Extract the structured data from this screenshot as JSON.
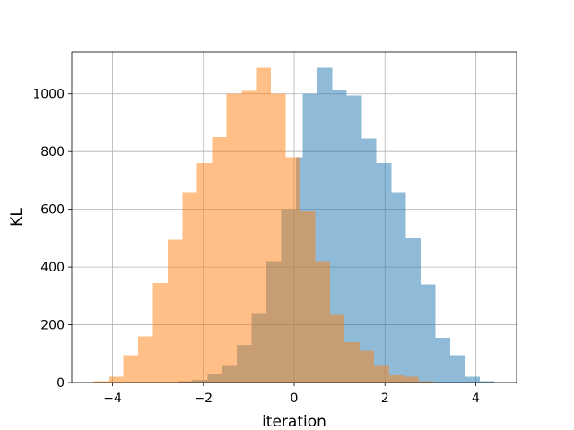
{
  "chart_data": {
    "type": "histogram",
    "xlabel": "iteration",
    "ylabel": "KL",
    "xlim": [
      -4.9,
      4.9
    ],
    "ylim": [
      0,
      1145
    ],
    "xticks": [
      -4,
      -2,
      0,
      2,
      4
    ],
    "xtick_labels": [
      "−4",
      "−2",
      "0",
      "2",
      "4"
    ],
    "yticks": [
      0,
      200,
      400,
      600,
      800,
      1000
    ],
    "ytick_labels": [
      "0",
      "200",
      "400",
      "600",
      "800",
      "1000"
    ],
    "grid": true,
    "series": [
      {
        "color": "#1f77b4",
        "alpha": 0.5,
        "bins": [
          {
            "x0": -2.56,
            "x1": -2.24,
            "count": 5
          },
          {
            "x0": -2.24,
            "x1": -1.91,
            "count": 10
          },
          {
            "x0": -1.91,
            "x1": -1.59,
            "count": 30
          },
          {
            "x0": -1.59,
            "x1": -1.26,
            "count": 60
          },
          {
            "x0": -1.26,
            "x1": -0.94,
            "count": 130
          },
          {
            "x0": -0.94,
            "x1": -0.61,
            "count": 240
          },
          {
            "x0": -0.61,
            "x1": -0.29,
            "count": 420
          },
          {
            "x0": -0.29,
            "x1": 0.04,
            "count": 600
          },
          {
            "x0": 0.04,
            "x1": 0.19,
            "count": 780
          },
          {
            "x0": 0.19,
            "x1": 0.51,
            "count": 1000
          },
          {
            "x0": 0.51,
            "x1": 0.84,
            "count": 1090
          },
          {
            "x0": 0.84,
            "x1": 1.16,
            "count": 1015
          },
          {
            "x0": 1.16,
            "x1": 1.49,
            "count": 995
          },
          {
            "x0": 1.49,
            "x1": 1.81,
            "count": 845
          },
          {
            "x0": 1.81,
            "x1": 2.14,
            "count": 760
          },
          {
            "x0": 2.14,
            "x1": 2.46,
            "count": 660
          },
          {
            "x0": 2.46,
            "x1": 2.79,
            "count": 500
          },
          {
            "x0": 2.79,
            "x1": 3.11,
            "count": 340
          },
          {
            "x0": 3.11,
            "x1": 3.44,
            "count": 155
          },
          {
            "x0": 3.44,
            "x1": 3.76,
            "count": 95
          },
          {
            "x0": 3.76,
            "x1": 4.09,
            "count": 20
          },
          {
            "x0": 4.09,
            "x1": 4.41,
            "count": 5
          }
        ]
      },
      {
        "color": "#ff7f0e",
        "alpha": 0.5,
        "bins": [
          {
            "x0": -4.41,
            "x1": -4.09,
            "count": 5
          },
          {
            "x0": -4.09,
            "x1": -3.76,
            "count": 20
          },
          {
            "x0": -3.76,
            "x1": -3.44,
            "count": 95
          },
          {
            "x0": -3.44,
            "x1": -3.11,
            "count": 160
          },
          {
            "x0": -3.11,
            "x1": -2.79,
            "count": 345
          },
          {
            "x0": -2.79,
            "x1": -2.46,
            "count": 495
          },
          {
            "x0": -2.46,
            "x1": -2.14,
            "count": 660
          },
          {
            "x0": -2.14,
            "x1": -1.81,
            "count": 760
          },
          {
            "x0": -1.81,
            "x1": -1.49,
            "count": 850
          },
          {
            "x0": -1.49,
            "x1": -1.16,
            "count": 1000
          },
          {
            "x0": -1.16,
            "x1": -0.84,
            "count": 1010
          },
          {
            "x0": -0.84,
            "x1": -0.51,
            "count": 1090
          },
          {
            "x0": -0.51,
            "x1": -0.19,
            "count": 1000
          },
          {
            "x0": -0.19,
            "x1": 0.14,
            "count": 780
          },
          {
            "x0": 0.14,
            "x1": 0.46,
            "count": 595
          },
          {
            "x0": 0.46,
            "x1": 0.79,
            "count": 420
          },
          {
            "x0": 0.79,
            "x1": 1.11,
            "count": 235
          },
          {
            "x0": 1.11,
            "x1": 1.44,
            "count": 140
          },
          {
            "x0": 1.44,
            "x1": 1.76,
            "count": 110
          },
          {
            "x0": 1.76,
            "x1": 2.09,
            "count": 60
          },
          {
            "x0": 2.09,
            "x1": 2.41,
            "count": 25
          },
          {
            "x0": 2.41,
            "x1": 2.74,
            "count": 20
          },
          {
            "x0": 2.74,
            "x1": 3.06,
            "count": 5
          }
        ]
      }
    ]
  }
}
